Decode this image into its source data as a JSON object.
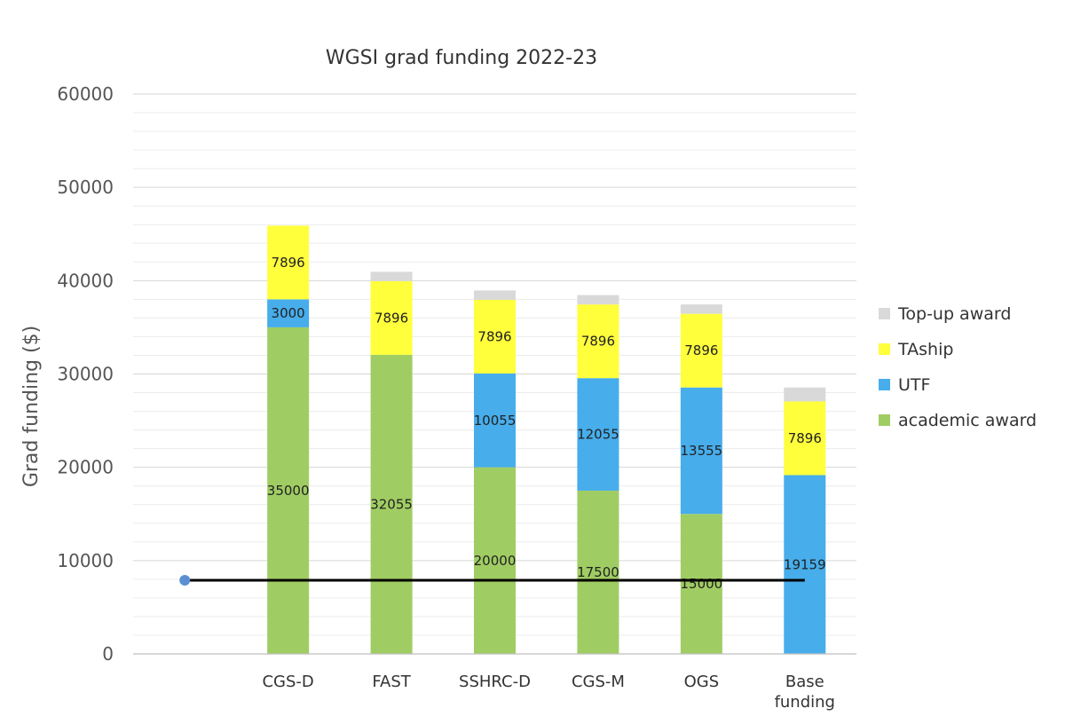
{
  "chart_data": {
    "type": "bar",
    "stacked": true,
    "title": "WGSI grad funding 2022-23",
    "xlabel": "",
    "ylabel": "Grad funding ($)",
    "ylim": [
      0,
      60000
    ],
    "yticks": [
      "0",
      "10000",
      "20000",
      "30000",
      "40000",
      "50000",
      "60000"
    ],
    "grid": "horizontal major and minor",
    "legend_position": "right",
    "categories": [
      "CGS-D",
      "FAST",
      "SSHRC-D",
      "CGS-M",
      "OGS",
      "Base funding"
    ],
    "series": [
      {
        "name": "academic award",
        "color": "#a0cd63",
        "values": [
          35000,
          32055,
          20000,
          17500,
          15000,
          0
        ],
        "labels": [
          "35000",
          "32055",
          "20000",
          "17500",
          "15000",
          ""
        ]
      },
      {
        "name": "UTF",
        "color": "#47adeb",
        "values": [
          3000,
          0,
          10055,
          12055,
          13555,
          19159
        ],
        "labels": [
          "3000",
          "",
          "10055",
          "12055",
          "13555",
          "19159"
        ]
      },
      {
        "name": "TAship",
        "color": "#ffff3c",
        "values": [
          7896,
          7896,
          7896,
          7896,
          7896,
          7896
        ],
        "labels": [
          "7896",
          "7896",
          "7896",
          "7896",
          "7896",
          "7896"
        ]
      },
      {
        "name": "Top-up award",
        "color": "#d9d9d9",
        "values": [
          0,
          1000,
          1000,
          1000,
          1000,
          1500
        ],
        "labels": [
          "",
          "",
          "",
          "",
          "",
          ""
        ]
      }
    ],
    "reference_line": {
      "value": 7896,
      "color": "#000000",
      "marker_color": "#5b8fd1"
    }
  }
}
